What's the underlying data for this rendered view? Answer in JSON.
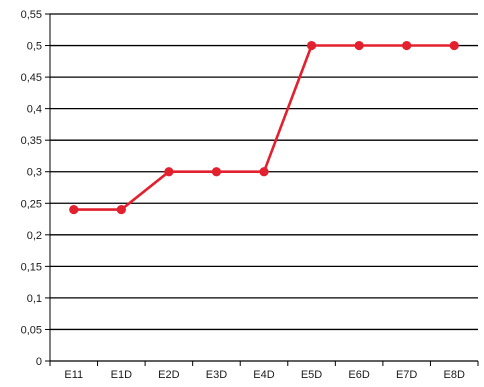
{
  "chart_data": {
    "type": "line",
    "categories": [
      "E11",
      "E1D",
      "E2D",
      "E3D",
      "E4D",
      "E5D",
      "E6D",
      "E7D",
      "E8D"
    ],
    "series": [
      {
        "values": [
          0.24,
          0.24,
          0.3,
          0.3,
          0.3,
          0.5,
          0.5,
          0.5,
          0.5
        ],
        "color": "#e3202e"
      }
    ],
    "yticks": [
      0,
      0.05,
      0.1,
      0.15,
      0.2,
      0.25,
      0.3,
      0.35,
      0.4,
      0.45,
      0.5,
      0.55
    ],
    "ytick_labels": [
      "0",
      "0,05",
      "0,1",
      "0,15",
      "0,2",
      "0,25",
      "0,3",
      "0,35",
      "0,4",
      "0,45",
      "0,5",
      "0,55"
    ],
    "ylim": [
      0,
      0.55
    ],
    "grid": true,
    "title": "",
    "xlabel": "",
    "ylabel": ""
  }
}
